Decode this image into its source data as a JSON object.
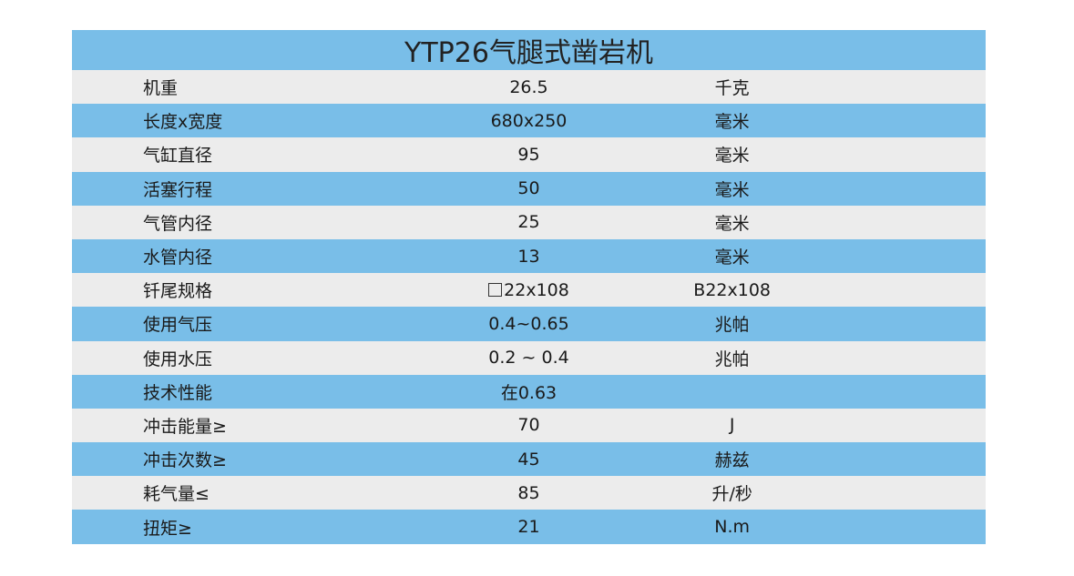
{
  "title": "YTP26气腿式凿岩机",
  "rows": [
    {
      "label": "机重",
      "value": "26.5",
      "unit": "千克"
    },
    {
      "label": "长度x宽度",
      "value": "680x250",
      "unit": "毫米"
    },
    {
      "label": "气缸直径",
      "value": "95",
      "unit": "毫米"
    },
    {
      "label": "活塞行程",
      "value": "50",
      "unit": "毫米"
    },
    {
      "label": "气管内径",
      "value": "25",
      "unit": "毫米"
    },
    {
      "label": "水管内径",
      "value": "13",
      "unit": "毫米"
    },
    {
      "label": "钎尾规格",
      "value": "22x108",
      "unit": "B22x108",
      "value_icon": "square-icon"
    },
    {
      "label": "使用气压",
      "value": "0.4~0.65",
      "unit": "兆帕"
    },
    {
      "label": "使用水压",
      "value": "0.2 ~ 0.4",
      "unit": "兆帕"
    },
    {
      "label": "技术性能",
      "value": "在0.63",
      "unit": ""
    },
    {
      "label": "冲击能量≥",
      "value": "70",
      "unit": "J"
    },
    {
      "label": "冲击次数≥",
      "value": "45",
      "unit": "赫兹"
    },
    {
      "label": "耗气量≤",
      "value": "85",
      "unit": "升/秒"
    },
    {
      "label": "扭矩≥",
      "value": "21",
      "unit": "N.m"
    }
  ],
  "colors": {
    "row_blue": "#79bee8",
    "row_light": "#ececec"
  }
}
